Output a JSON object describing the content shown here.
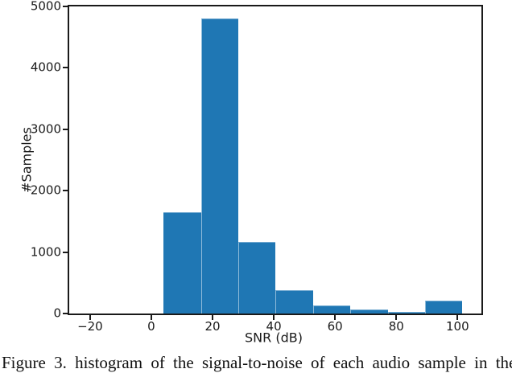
{
  "caption": {
    "text": "Figure 3. histogram of the signal-to-noise of each audio sample in the"
  },
  "chart_data": {
    "type": "bar",
    "subtype": "histogram",
    "title": "",
    "xlabel": "SNR (dB)",
    "ylabel": "#Samples",
    "xlim": [
      -26.8,
      107.8
    ],
    "ylim": [
      0,
      5000
    ],
    "x_ticks": [
      -20,
      0,
      20,
      40,
      60,
      80,
      100
    ],
    "y_ticks": [
      0,
      1000,
      2000,
      3000,
      4000,
      5000
    ],
    "bin_edges": [
      4.0,
      16.2,
      28.4,
      40.6,
      52.8,
      65.0,
      77.2,
      89.4,
      101.6
    ],
    "counts": [
      1650,
      4800,
      1160,
      380,
      135,
      70,
      30,
      215
    ],
    "bar_color": "#1f77b4",
    "grid": false,
    "legend_position": "none"
  }
}
